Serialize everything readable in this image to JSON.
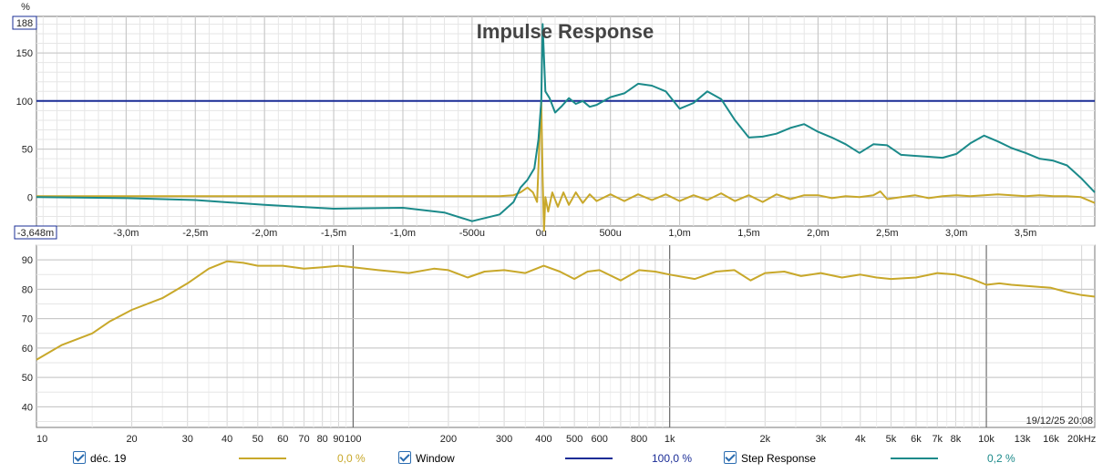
{
  "chart_data": [
    {
      "type": "line",
      "title": "Impulse Response",
      "ylabel": "%",
      "xlim": [
        -3.648,
        4.0
      ],
      "ylim": [
        -30,
        188
      ],
      "y_top_label": "188",
      "x_left_label": "-3,648m",
      "x_tick_labels": [
        "-3,0m",
        "-2,5m",
        "-2,0m",
        "-1,5m",
        "-1,0m",
        "-500u",
        "0u",
        "500u",
        "1,0m",
        "1,5m",
        "2,0m",
        "2,5m",
        "3,0m",
        "3,5m"
      ],
      "x_ticks": [
        -3.0,
        -2.5,
        -2.0,
        -1.5,
        -1.0,
        -0.5,
        0.0,
        0.5,
        1.0,
        1.5,
        2.0,
        2.5,
        3.0,
        3.5
      ],
      "y_tick_labels": [
        "150",
        "100",
        "50",
        "0"
      ],
      "y_ticks": [
        150,
        100,
        50,
        0
      ],
      "grid": true,
      "series": [
        {
          "name": "déc. 19",
          "color": "#c8a82a",
          "x": [
            -3.648,
            -3.0,
            -2.5,
            -2.0,
            -1.5,
            -1.0,
            -0.5,
            -0.3,
            -0.2,
            -0.15,
            -0.1,
            -0.06,
            -0.03,
            -0.01,
            0.0,
            0.01,
            0.02,
            0.03,
            0.05,
            0.08,
            0.12,
            0.16,
            0.2,
            0.25,
            0.3,
            0.35,
            0.4,
            0.5,
            0.6,
            0.7,
            0.8,
            0.9,
            1.0,
            1.1,
            1.2,
            1.3,
            1.4,
            1.5,
            1.6,
            1.7,
            1.8,
            1.9,
            2.0,
            2.1,
            2.2,
            2.3,
            2.4,
            2.45,
            2.5,
            2.6,
            2.7,
            2.8,
            2.9,
            3.0,
            3.1,
            3.2,
            3.3,
            3.4,
            3.5,
            3.6,
            3.7,
            3.8,
            3.9,
            4.0
          ],
          "values": [
            1,
            1,
            1,
            1,
            1,
            1,
            1,
            1,
            2,
            5,
            10,
            5,
            -5,
            70,
            100,
            20,
            -35,
            0,
            -15,
            5,
            -10,
            5,
            -8,
            5,
            -6,
            3,
            -4,
            3,
            -4,
            3,
            -3,
            3,
            -4,
            2,
            -3,
            4,
            -4,
            2,
            -5,
            3,
            -2,
            2,
            2,
            -1,
            1,
            0,
            2,
            6,
            -2,
            0,
            2,
            -1,
            1,
            2,
            1,
            2,
            3,
            2,
            1,
            2,
            1,
            1,
            0,
            -6
          ]
        },
        {
          "name": "Window",
          "color": "#1a2c96",
          "x": [
            -3.648,
            4.0
          ],
          "values": [
            100,
            100
          ]
        },
        {
          "name": "Step Response",
          "color": "#1b8a8a",
          "x": [
            -3.648,
            -3.0,
            -2.5,
            -2.0,
            -1.5,
            -1.0,
            -0.7,
            -0.5,
            -0.3,
            -0.2,
            -0.15,
            -0.1,
            -0.05,
            -0.02,
            0.0,
            0.01,
            0.03,
            0.06,
            0.1,
            0.15,
            0.2,
            0.25,
            0.3,
            0.35,
            0.4,
            0.5,
            0.6,
            0.7,
            0.8,
            0.9,
            1.0,
            1.1,
            1.2,
            1.3,
            1.4,
            1.5,
            1.6,
            1.7,
            1.8,
            1.9,
            2.0,
            2.1,
            2.2,
            2.3,
            2.4,
            2.5,
            2.6,
            2.7,
            2.8,
            2.9,
            3.0,
            3.1,
            3.2,
            3.3,
            3.4,
            3.5,
            3.6,
            3.7,
            3.8,
            3.9,
            4.0
          ],
          "values": [
            0,
            -1,
            -3,
            -8,
            -12,
            -11,
            -16,
            -25,
            -18,
            -5,
            10,
            18,
            30,
            60,
            100,
            180,
            110,
            103,
            88,
            95,
            103,
            97,
            100,
            94,
            96,
            104,
            108,
            118,
            116,
            110,
            92,
            98,
            110,
            102,
            80,
            62,
            63,
            66,
            72,
            76,
            68,
            62,
            55,
            46,
            55,
            54,
            44,
            43,
            42,
            41,
            45,
            56,
            64,
            58,
            51,
            46,
            40,
            38,
            33,
            20,
            5
          ]
        }
      ]
    },
    {
      "type": "line",
      "x_scale": "log",
      "xlim": [
        10,
        22000
      ],
      "ylim": [
        33,
        95
      ],
      "x_tick_labels": [
        "10",
        "20",
        "30",
        "40",
        "50",
        "60",
        "70",
        "80",
        "90",
        "100",
        "200",
        "300",
        "400",
        "500",
        "600",
        "800",
        "1k",
        "2k",
        "3k",
        "4k",
        "5k",
        "6k",
        "7k",
        "8k",
        "10k",
        "13k",
        "16k",
        "20kHz"
      ],
      "x_ticks": [
        10,
        20,
        30,
        40,
        50,
        60,
        70,
        80,
        90,
        100,
        200,
        300,
        400,
        500,
        600,
        800,
        1000,
        2000,
        3000,
        4000,
        5000,
        6000,
        7000,
        8000,
        10000,
        13000,
        16000,
        20000
      ],
      "y_tick_labels": [
        "90",
        "80",
        "70",
        "60",
        "50",
        "40"
      ],
      "y_ticks": [
        90,
        80,
        70,
        60,
        50,
        40
      ],
      "grid": true,
      "timestamp": "19/12/25 20:08",
      "series": [
        {
          "name": "déc. 19",
          "color": "#c8a82a",
          "x": [
            10,
            12,
            15,
            17,
            20,
            25,
            30,
            35,
            40,
            45,
            50,
            60,
            70,
            80,
            90,
            100,
            120,
            150,
            180,
            200,
            230,
            260,
            300,
            350,
            400,
            450,
            500,
            550,
            600,
            700,
            800,
            900,
            1000,
            1200,
            1400,
            1600,
            1800,
            2000,
            2300,
            2600,
            3000,
            3500,
            4000,
            4500,
            5000,
            6000,
            7000,
            8000,
            9000,
            10000,
            11000,
            12000,
            14000,
            16000,
            18000,
            20000,
            22000
          ],
          "values": [
            56,
            61,
            65,
            69,
            73,
            77,
            82,
            87,
            89.5,
            89,
            88,
            88,
            87,
            87.5,
            88,
            87.5,
            86.5,
            85.5,
            87,
            86.5,
            84,
            86,
            86.5,
            85.5,
            88,
            86,
            83.5,
            86,
            86.5,
            83,
            86.5,
            86,
            85,
            83.5,
            86,
            86.5,
            83,
            85.5,
            86,
            84.5,
            85.5,
            84,
            85,
            84,
            83.5,
            84,
            85.5,
            85,
            83.5,
            81.5,
            82,
            81.5,
            81,
            80.5,
            79,
            78,
            77.5
          ]
        }
      ]
    }
  ],
  "legend": [
    {
      "label": "déc. 19",
      "color": "#c8a82a",
      "value": "0,0 %"
    },
    {
      "label": "Window",
      "color": "#1a2c96",
      "value": "100,0 %"
    },
    {
      "label": "Step Response",
      "color": "#1b8a8a",
      "value": "0,2 %"
    }
  ]
}
